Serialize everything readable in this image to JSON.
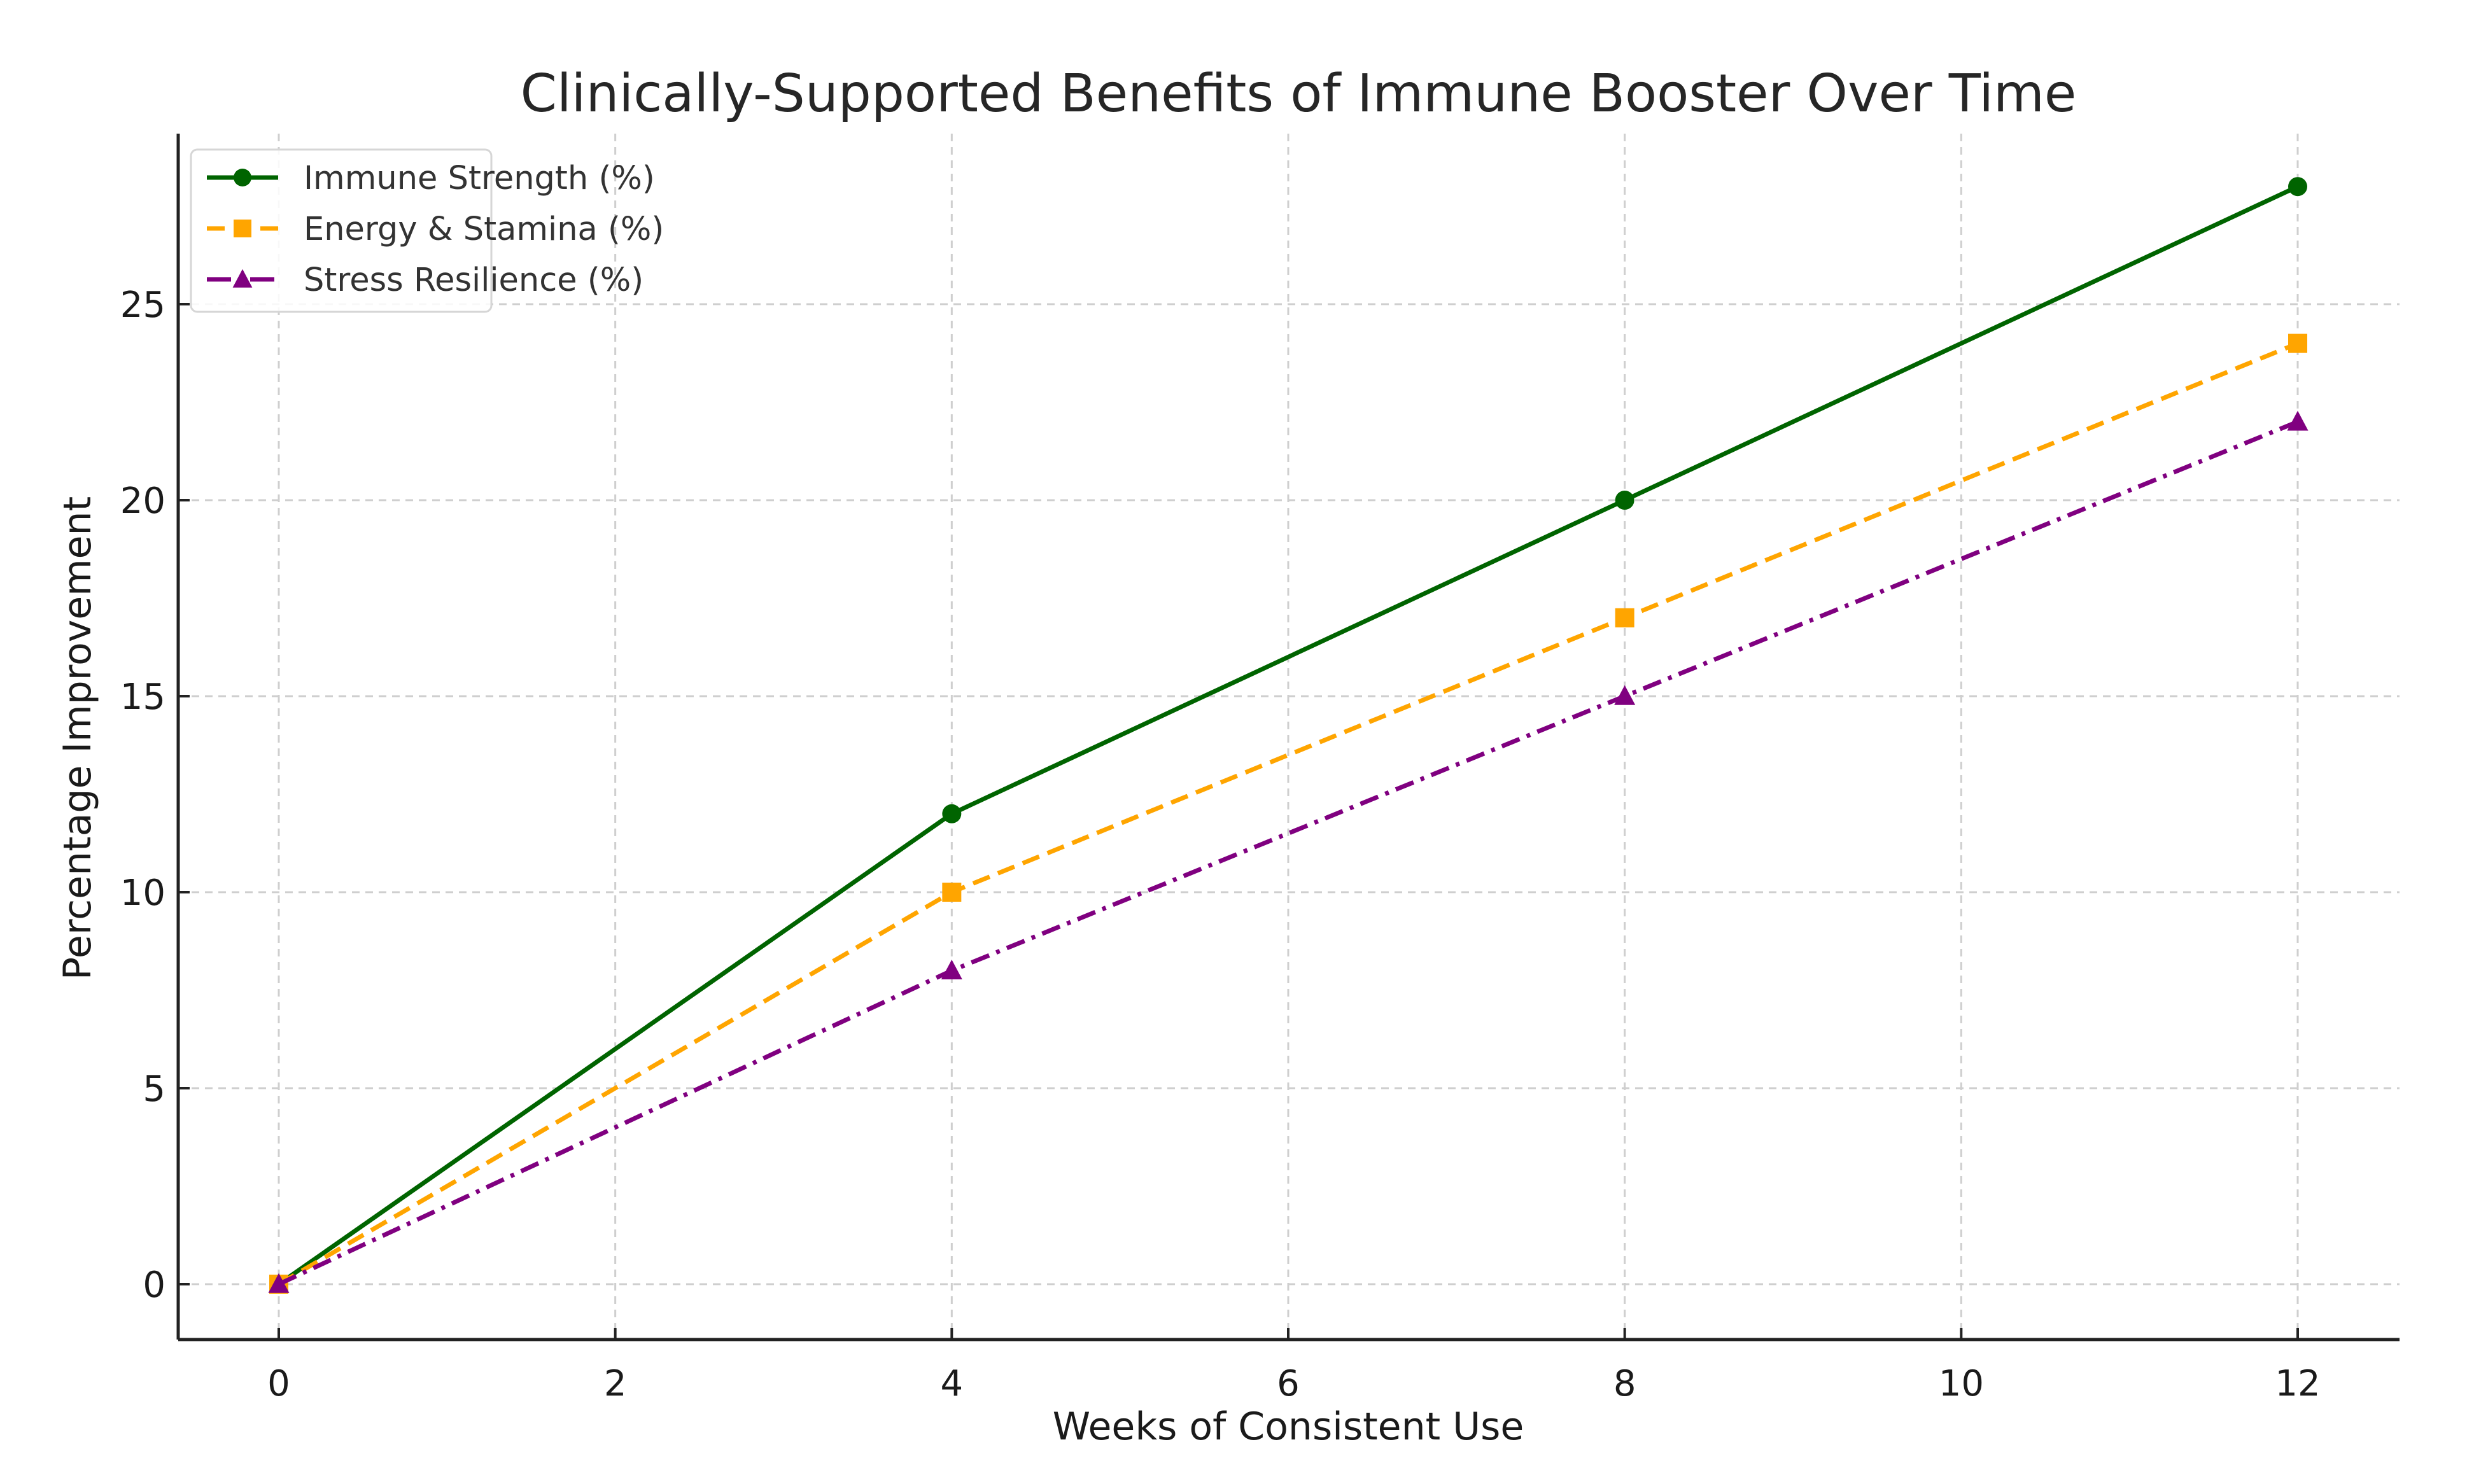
{
  "chart_data": {
    "type": "line",
    "title": "Clinically-Supported Benefits of Immune Booster Over Time",
    "xlabel": "Weeks of Consistent Use",
    "ylabel": "Percentage Improvement",
    "x": [
      0,
      4,
      8,
      12
    ],
    "xlim": [
      -0.6,
      12.6
    ],
    "ylim": [
      -1.4,
      29.4
    ],
    "xticks": [
      0,
      2,
      4,
      6,
      8,
      10,
      12
    ],
    "xtick_labels": [
      "0",
      "2",
      "4",
      "6",
      "8",
      "10",
      "12"
    ],
    "yticks": [
      0,
      5,
      10,
      15,
      20,
      25
    ],
    "ytick_labels": [
      "0",
      "5",
      "10",
      "15",
      "20",
      "25"
    ],
    "grid": true,
    "legend_position": "top-left",
    "series": [
      {
        "name": "Immune Strength (%)",
        "values": [
          0,
          12,
          20,
          28
        ],
        "color": "#006400",
        "marker": "circle",
        "linestyle": "solid"
      },
      {
        "name": "Energy & Stamina (%)",
        "values": [
          0,
          10,
          17,
          24
        ],
        "color": "#FFA500",
        "marker": "square",
        "linestyle": "dashed"
      },
      {
        "name": "Stress Resilience (%)",
        "values": [
          0,
          8,
          15,
          22
        ],
        "color": "#800080",
        "marker": "triangle",
        "linestyle": "dashdot"
      }
    ]
  }
}
